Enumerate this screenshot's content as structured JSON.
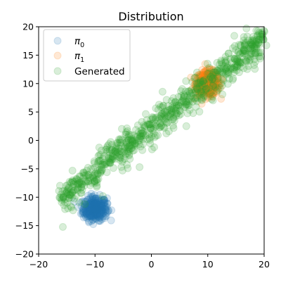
{
  "chart_data": {
    "type": "scatter",
    "title": "Distribution",
    "xlabel": "",
    "ylabel": "",
    "xlim": [
      -20,
      20
    ],
    "ylim": [
      -20,
      20
    ],
    "xticks": [
      -20,
      -10,
      0,
      10,
      20
    ],
    "yticks": [
      -20,
      -15,
      -10,
      -5,
      0,
      5,
      10,
      15,
      20
    ],
    "grid": false,
    "legend_position": "top-left",
    "series": [
      {
        "name": "π0",
        "label_base": "π",
        "label_sub": "0",
        "color": "#1f77b4",
        "alpha": 0.18,
        "points": [
          [
            -10,
            -12
          ],
          [
            -9.2,
            -11.6
          ],
          [
            -10.8,
            -11.9
          ],
          [
            -9.6,
            -12.8
          ],
          [
            -10.4,
            -10.9
          ],
          [
            -8.7,
            -11.9
          ],
          [
            -11.2,
            -12.4
          ],
          [
            -9.9,
            -13.1
          ],
          [
            -10.1,
            -11.1
          ],
          [
            -8.5,
            -12.6
          ],
          [
            -11.5,
            -11.3
          ],
          [
            -9.4,
            -10.6
          ],
          [
            -10.6,
            -13.4
          ],
          [
            -7.9,
            -11.7
          ],
          [
            -12.1,
            -12.1
          ],
          [
            -9.1,
            -13.6
          ],
          [
            -10.9,
            -10.3
          ],
          [
            -8.3,
            -10.9
          ],
          [
            -11.8,
            -13.1
          ],
          [
            -9.7,
            -12.2
          ],
          [
            -10.3,
            -12.6
          ],
          [
            -8.9,
            -12.3
          ],
          [
            -11.1,
            -11.6
          ],
          [
            -9.5,
            -11.4
          ],
          [
            -10.7,
            -12.2
          ],
          [
            -8.1,
            -12.9
          ],
          [
            -11.7,
            -10.8
          ],
          [
            -9.9,
            -10.2
          ],
          [
            -7.6,
            -12.3
          ],
          [
            -12.4,
            -11.6
          ],
          [
            -9.3,
            -14.2
          ],
          [
            -10.5,
            -9.9
          ],
          [
            -8.6,
            -13.4
          ],
          [
            -11.4,
            -13.7
          ],
          [
            -10.2,
            -11.5
          ],
          [
            -9.0,
            -11.1
          ],
          [
            -11.0,
            -12.9
          ],
          [
            -8.8,
            -10.4
          ],
          [
            -12.0,
            -12.7
          ],
          [
            -9.8,
            -13.8
          ],
          [
            -10.9,
            -11.4
          ],
          [
            -7.8,
            -11.1
          ],
          [
            -11.6,
            -12.0
          ],
          [
            -9.6,
            -11.8
          ],
          [
            -10.0,
            -12.4
          ],
          [
            -8.4,
            -11.4
          ],
          [
            -11.3,
            -10.5
          ],
          [
            -9.2,
            -12.9
          ],
          [
            -10.6,
            -11.8
          ],
          [
            -8.2,
            -12.1
          ],
          [
            -12.5,
            -12.9
          ],
          [
            -9.4,
            -10.2
          ],
          [
            -10.8,
            -13.2
          ],
          [
            -9.0,
            -12.0
          ],
          [
            -11.9,
            -11.2
          ],
          [
            -8.0,
            -13.3
          ],
          [
            -10.4,
            -14.0
          ],
          [
            -9.7,
            -11.0
          ],
          [
            -11.0,
            -12.2
          ],
          [
            -8.9,
            -11.6
          ]
        ]
      },
      {
        "name": "π1",
        "label_base": "π",
        "label_sub": "1",
        "color": "#ff7f0e",
        "alpha": 0.18,
        "points": [
          [
            10,
            10
          ],
          [
            9.2,
            10.8
          ],
          [
            10.8,
            9.3
          ],
          [
            9.5,
            11.2
          ],
          [
            10.6,
            8.7
          ],
          [
            8.6,
            9.9
          ],
          [
            11.4,
            10.5
          ],
          [
            9.9,
            11.8
          ],
          [
            10.2,
            8.1
          ],
          [
            8.3,
            11.0
          ],
          [
            11.8,
            9.1
          ],
          [
            9.1,
            8.8
          ],
          [
            10.9,
            11.3
          ],
          [
            7.9,
            10.4
          ],
          [
            12.2,
            10.0
          ],
          [
            9.6,
            12.2
          ],
          [
            10.5,
            7.8
          ],
          [
            8.8,
            10.6
          ],
          [
            11.1,
            8.4
          ],
          [
            9.3,
            9.5
          ],
          [
            10.3,
            11.0
          ],
          [
            8.1,
            9.3
          ],
          [
            11.6,
            11.4
          ],
          [
            9.8,
            9.0
          ],
          [
            10.7,
            10.2
          ],
          [
            8.5,
            8.4
          ],
          [
            12.0,
            9.6
          ],
          [
            9.4,
            11.6
          ],
          [
            10.1,
            9.6
          ],
          [
            7.6,
            10.9
          ],
          [
            12.5,
            10.8
          ],
          [
            9.0,
            12.4
          ],
          [
            10.9,
            7.6
          ],
          [
            8.2,
            8.9
          ],
          [
            11.3,
            11.9
          ],
          [
            9.7,
            10.4
          ],
          [
            10.4,
            9.0
          ],
          [
            8.7,
            11.5
          ],
          [
            11.7,
            8.6
          ],
          [
            9.2,
            9.9
          ],
          [
            10.6,
            11.6
          ],
          [
            8.0,
            10.1
          ],
          [
            12.3,
            9.3
          ],
          [
            9.5,
            8.3
          ],
          [
            10.0,
            12.6
          ],
          [
            7.8,
            9.5
          ],
          [
            11.5,
            10.2
          ],
          [
            9.9,
            10.1
          ]
        ]
      },
      {
        "name": "Generated",
        "color": "#2ca02c",
        "alpha": 0.18,
        "band": {
          "x_from": -16,
          "x_to": 20,
          "y_at_x_from": -10.2,
          "y_at_x_to": 18,
          "spread": 1.4,
          "count": 720
        },
        "points": [
          [
            -15.5,
            -11.4
          ],
          [
            -14.8,
            -8.6
          ],
          [
            -16.2,
            -10.1
          ],
          [
            -13.9,
            -12.3
          ],
          [
            -15.1,
            -9.3
          ],
          [
            -12.8,
            -10.9
          ],
          [
            -14.2,
            -11.8
          ],
          [
            -11.8,
            -11.2
          ],
          [
            -13.1,
            -7.6
          ],
          [
            -8.6,
            -9.8
          ],
          [
            -4.2,
            -4.9
          ],
          [
            -2.1,
            -4.7
          ],
          [
            0.5,
            -1.2
          ],
          [
            3.1,
            1.6
          ],
          [
            6.2,
            2.5
          ],
          [
            7.4,
            4.8
          ],
          [
            8.9,
            7.2
          ],
          [
            11.8,
            10.9
          ],
          [
            12.6,
            8.1
          ],
          [
            15.8,
            12.9
          ],
          [
            17.2,
            13.1
          ],
          [
            19.4,
            15.5
          ],
          [
            13.7,
            15.3
          ],
          [
            16.4,
            18.2
          ],
          [
            18.6,
            19.3
          ],
          [
            -10.1,
            -6.1
          ],
          [
            -6.9,
            -2.8
          ],
          [
            -1.6,
            1.2
          ]
        ]
      }
    ]
  }
}
